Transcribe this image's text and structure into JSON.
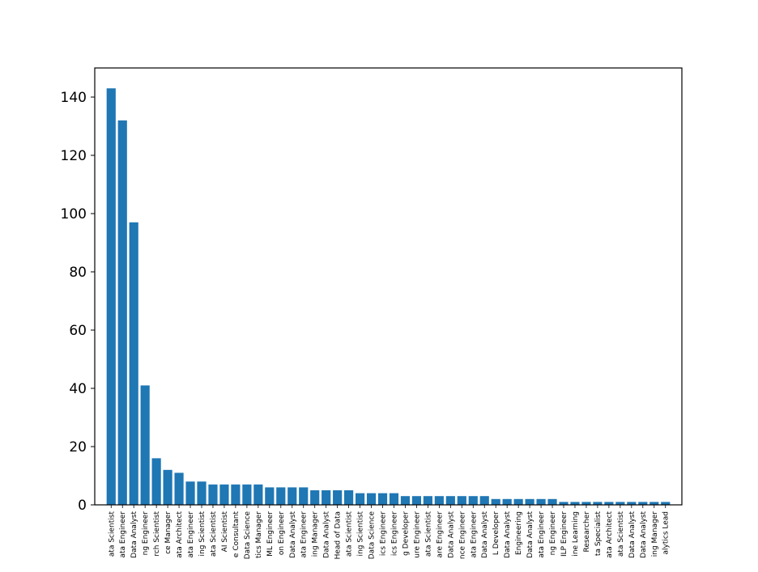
{
  "chart_data": {
    "type": "bar",
    "categories": [
      "ata Scientist",
      "ata Engineer",
      "Data Analyst",
      "ng Engineer",
      "rch Scientist",
      "ce Manager",
      "ata Architect",
      "ata Engineer",
      "ing Scientist",
      "ata Scientist",
      "AI Scientist",
      "e Consultant",
      "Data Science",
      "tics Manager",
      "ML Engineer",
      "on Engineer",
      "Data Analyst",
      "ata Engineer",
      "ing Manager",
      "Data Analyst",
      "Head of Data",
      "ata Scientist",
      "ing Scientist",
      "Data Science",
      "ics Engineer",
      "ics Engineer",
      "g Developer",
      "ure Engineer",
      "ata Scientist",
      "are Engineer",
      "Data Analyst",
      "nce Engineer",
      "ata Engineer",
      "Data Analyst",
      "L Developer",
      "Data Analyst",
      "Engineering",
      "Data Analyst",
      "ata Engineer",
      "ng Engineer",
      "ILP Engineer",
      "ine Learning",
      "Researcher",
      "ta Specialist",
      "ata Architect",
      "ata Scientist",
      "Data Analyst",
      "Data Analyst",
      "ing Manager",
      "alytics Lead"
    ],
    "values": [
      143,
      132,
      97,
      41,
      16,
      12,
      11,
      8,
      8,
      7,
      7,
      7,
      7,
      7,
      6,
      6,
      6,
      6,
      5,
      5,
      5,
      5,
      4,
      4,
      4,
      4,
      3,
      3,
      3,
      3,
      3,
      3,
      3,
      3,
      2,
      2,
      2,
      2,
      2,
      2,
      1,
      1,
      1,
      1,
      1,
      1,
      1,
      1,
      1,
      1
    ],
    "ylim": [
      0,
      150
    ],
    "yticks": [
      0,
      20,
      40,
      60,
      80,
      100,
      120,
      140
    ],
    "bar_color": "#1f77b4",
    "grid": false,
    "title": "",
    "xlabel": "",
    "ylabel": ""
  }
}
